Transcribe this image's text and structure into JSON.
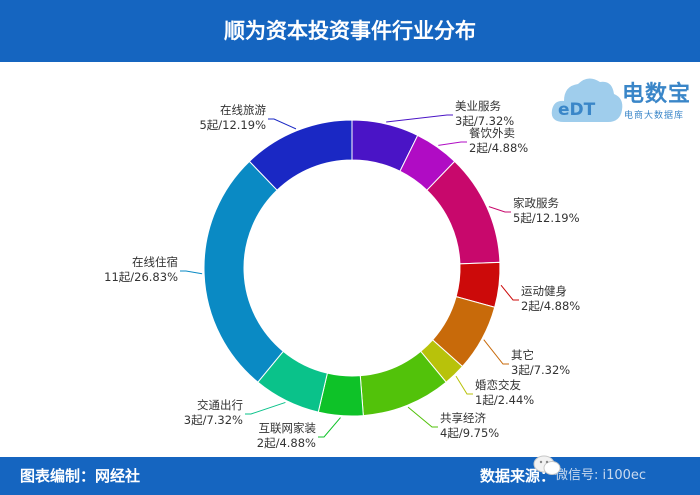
{
  "header": {
    "title": "顺为资本投资事件行业分布"
  },
  "footer": {
    "editor": "图表编制：网经社",
    "source": "数据来源：",
    "watermark": "微信号: i100ec"
  },
  "logo": {
    "name": "电数宝",
    "subtitle": "电商大数据库",
    "cloud_text": "eDT"
  },
  "chart_data": {
    "type": "pie",
    "title": "顺为资本投资事件行业分布",
    "slices": [
      {
        "name": "美业服务",
        "count": 3,
        "value": 7.32,
        "label": "3起/7.32%",
        "color": "#4a14c6"
      },
      {
        "name": "餐饮外卖",
        "count": 2,
        "value": 4.88,
        "label": "2起/4.88%",
        "color": "#b00cc4"
      },
      {
        "name": "家政服务",
        "count": 5,
        "value": 12.19,
        "label": "5起/12.19%",
        "color": "#c8086c"
      },
      {
        "name": "运动健身",
        "count": 2,
        "value": 4.88,
        "label": "2起/4.88%",
        "color": "#cc0a0a"
      },
      {
        "name": "其它",
        "count": 3,
        "value": 7.32,
        "label": "3起/7.32%",
        "color": "#c86a0a"
      },
      {
        "name": "婚恋交友",
        "count": 1,
        "value": 2.44,
        "label": "1起/2.44%",
        "color": "#b8c20a"
      },
      {
        "name": "共享经济",
        "count": 4,
        "value": 9.75,
        "label": "4起/9.75%",
        "color": "#52c20a"
      },
      {
        "name": "互联网家装",
        "count": 2,
        "value": 4.88,
        "label": "2起/4.88%",
        "color": "#0ec228"
      },
      {
        "name": "交通出行",
        "count": 3,
        "value": 7.32,
        "label": "3起/7.32%",
        "color": "#0ac28a"
      },
      {
        "name": "在线住宿",
        "count": 11,
        "value": 26.83,
        "label": "11起/26.83%",
        "color": "#0a8ac4"
      },
      {
        "name": "在线旅游",
        "count": 5,
        "value": 12.19,
        "label": "5起/12.19%",
        "color": "#1a28c4"
      }
    ]
  }
}
